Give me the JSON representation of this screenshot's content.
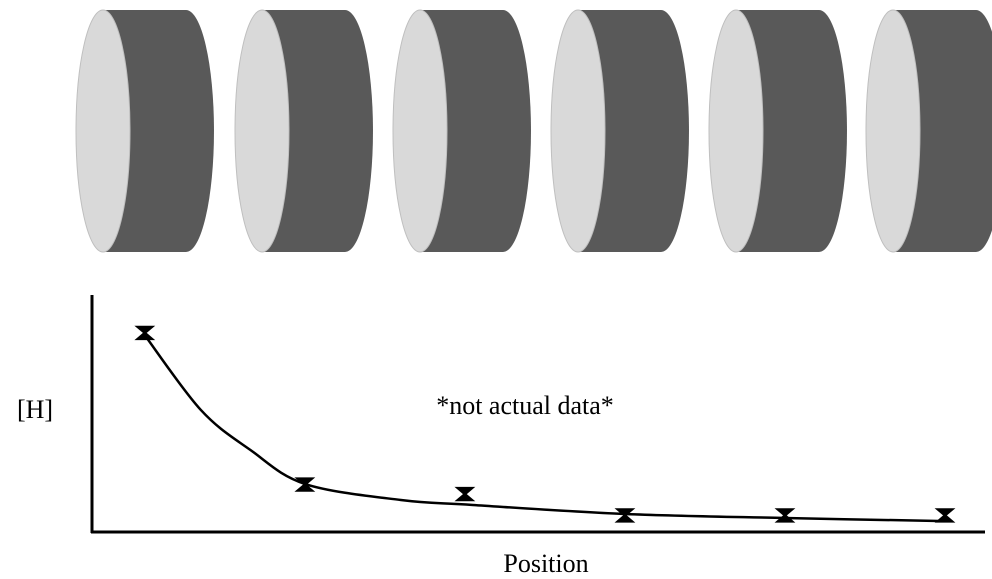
{
  "chart_data": {
    "type": "scatter",
    "x_label": "Position",
    "y_label": "[H]",
    "annotation": "*not actual data*",
    "x": [
      1,
      2,
      3,
      4,
      5,
      6
    ],
    "series": [
      {
        "color": "#000000",
        "values": [
          84,
          20,
          16,
          7,
          7,
          7
        ],
        "errors": [
          2.5,
          2.5,
          2.5,
          2.5,
          2.5,
          2.5
        ]
      }
    ],
    "fit": {
      "color": "#000000",
      "x": [
        1,
        1.35,
        1.66,
        2,
        2.6,
        3.05,
        4,
        5,
        6
      ],
      "values": [
        83,
        51.5,
        34.6,
        20.3,
        13.5,
        11.4,
        7.6,
        5.9,
        4.6
      ]
    },
    "xlim": [
      0.67,
      6.25
    ],
    "ylim": [
      0,
      100
    ]
  }
}
